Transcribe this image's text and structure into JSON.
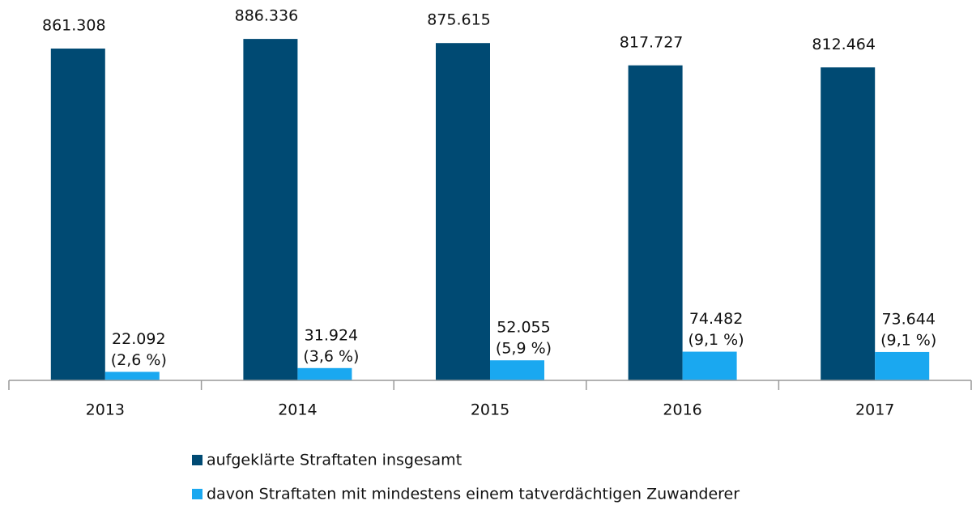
{
  "chart_data": {
    "type": "bar",
    "categories": [
      "2013",
      "2014",
      "2015",
      "2016",
      "2017"
    ],
    "series": [
      {
        "name": "aufgeklärte Straftaten insgesamt",
        "color": "#004a73",
        "values": [
          861308,
          886336,
          875615,
          817727,
          812464
        ],
        "value_labels": [
          [
            "861.308"
          ],
          [
            "886.336"
          ],
          [
            "875.615"
          ],
          [
            "817.727"
          ],
          [
            "812.464"
          ]
        ]
      },
      {
        "name": "davon Straftaten mit mindestens einem tatverdächtigen Zuwanderer",
        "color": "#1aa8f0",
        "values": [
          22092,
          31924,
          52055,
          74482,
          73644
        ],
        "value_labels": [
          [
            "22.092",
            "(2,6 %)"
          ],
          [
            "31.924",
            "(3,6 %)"
          ],
          [
            "52.055",
            "(5,9 %)"
          ],
          [
            "74.482",
            "(9,1 %)"
          ],
          [
            "73.644",
            "(9,1 %)"
          ]
        ]
      }
    ],
    "ylim": [
      0,
      1000000
    ]
  }
}
